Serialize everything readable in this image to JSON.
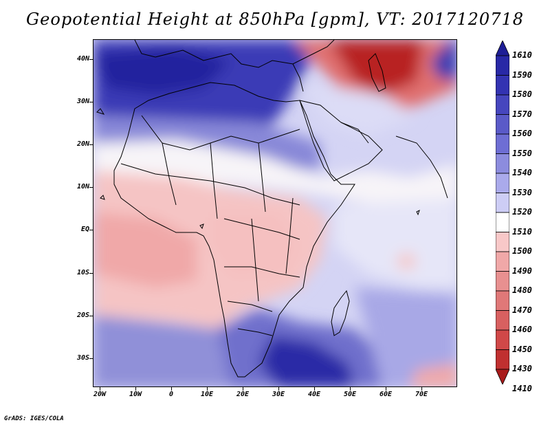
{
  "title": "Geopotential Height at 850hPa [gpm], VT: 2017120718",
  "credit": "GrADS: IGES/COLA",
  "axes": {
    "lat_labels": [
      "40N",
      "30N",
      "20N",
      "10N",
      "EQ",
      "10S",
      "20S",
      "30S"
    ],
    "lon_labels": [
      "20W",
      "10W",
      "0",
      "10E",
      "20E",
      "30E",
      "40E",
      "50E",
      "60E",
      "70E"
    ]
  },
  "colorbar": {
    "levels": [
      "1610",
      "1590",
      "1580",
      "1570",
      "1560",
      "1550",
      "1540",
      "1530",
      "1520",
      "1510",
      "1500",
      "1490",
      "1480",
      "1470",
      "1460",
      "1450",
      "1430",
      "1410"
    ],
    "colors": [
      "#1e1e96",
      "#2828a6",
      "#3333b2",
      "#4646be",
      "#5a5ac8",
      "#6e6ed4",
      "#8c8cde",
      "#aaaaeb",
      "#cdcdf5",
      "#ffffff",
      "#f8c8c8",
      "#f0a8a8",
      "#e89090",
      "#e07878",
      "#d86060",
      "#d04848",
      "#c03030",
      "#a81a1a"
    ]
  },
  "colors": {
    "background": "#ffffff",
    "land_outline": "#000000"
  }
}
